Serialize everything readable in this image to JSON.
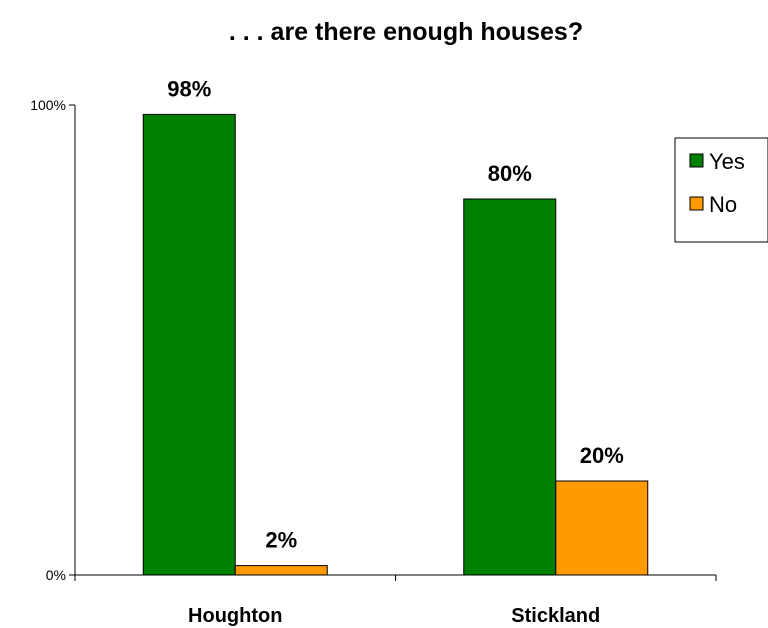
{
  "chart_data": {
    "type": "bar",
    "title": ". . . are there enough houses?",
    "categories": [
      "Houghton",
      "Stickland"
    ],
    "series": [
      {
        "name": "Yes",
        "values": [
          98,
          80
        ],
        "labels": [
          "98%",
          "80%"
        ],
        "color": "#008000"
      },
      {
        "name": "No",
        "values": [
          2,
          20
        ],
        "labels": [
          "2%",
          "20%"
        ],
        "color": "#FF9900"
      }
    ],
    "ylim": [
      0,
      100
    ],
    "yticks": [
      {
        "value": 0,
        "label": "0%"
      },
      {
        "value": 100,
        "label": "100%"
      }
    ],
    "xlabel": "",
    "ylabel": "",
    "grid": false,
    "legend": "right"
  }
}
